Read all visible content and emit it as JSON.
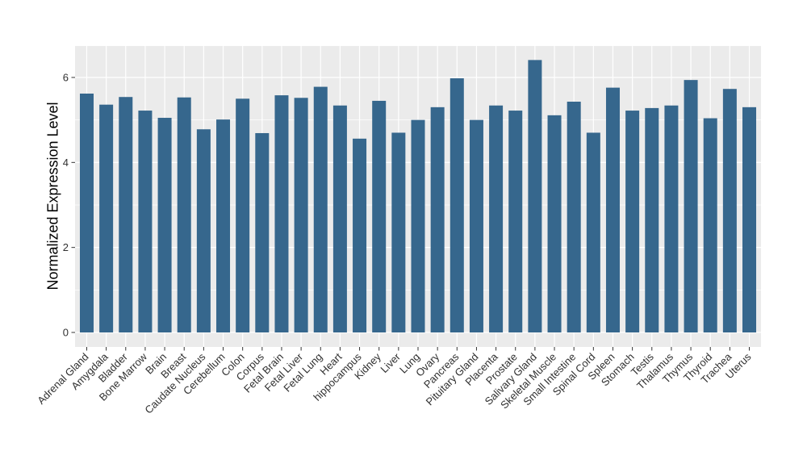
{
  "figure": {
    "background": "#FFFFFF",
    "panel_background": "#EBEBEB",
    "grid_color": "#FFFFFF",
    "bar_color": "#36678D",
    "tick_mark_color": "#333333",
    "axis_text_color": "#303030",
    "axis_title_color": "#000000"
  },
  "chart_data": {
    "type": "bar",
    "title": "",
    "xlabel": "",
    "ylabel": "Normalized Expression Level",
    "ylim": [
      0,
      6.74
    ],
    "yticks": [
      0,
      2,
      4,
      6
    ],
    "minor_yticks": [
      1,
      3,
      5
    ],
    "grid": "on",
    "legend": "none",
    "x_label_angle_deg": 45,
    "categories": [
      "Adrenal Gland",
      "Amygdala",
      "Bladder",
      "Bone Marrow",
      "Brain",
      "Breast",
      "Caudate Nucleus",
      "Cerebellum",
      "Colon",
      "Corpus",
      "Fetal Brain",
      "Fetal Liver",
      "Fetal Lung",
      "Heart",
      "hippocampus",
      "Kidney",
      "Liver",
      "Lung",
      "Ovary",
      "Pancreas",
      "Pituitary Gland",
      "Placenta",
      "Prostate",
      "Salivary Gland",
      "Skeletal Muscle",
      "Small Intestine",
      "Spinal Cord",
      "Spleen",
      "Stomach",
      "Testis",
      "Thalamus",
      "Thymus",
      "Thyroid",
      "Trachea",
      "Uterus"
    ],
    "values": [
      5.62,
      5.36,
      5.54,
      5.22,
      5.05,
      5.53,
      4.78,
      5.01,
      5.5,
      4.69,
      5.58,
      5.52,
      5.78,
      5.34,
      4.56,
      5.45,
      4.7,
      5.0,
      5.3,
      5.98,
      5.0,
      5.34,
      5.22,
      6.41,
      5.11,
      5.43,
      4.7,
      5.76,
      5.22,
      5.28,
      5.34,
      5.94,
      5.04,
      5.73,
      5.3
    ]
  }
}
